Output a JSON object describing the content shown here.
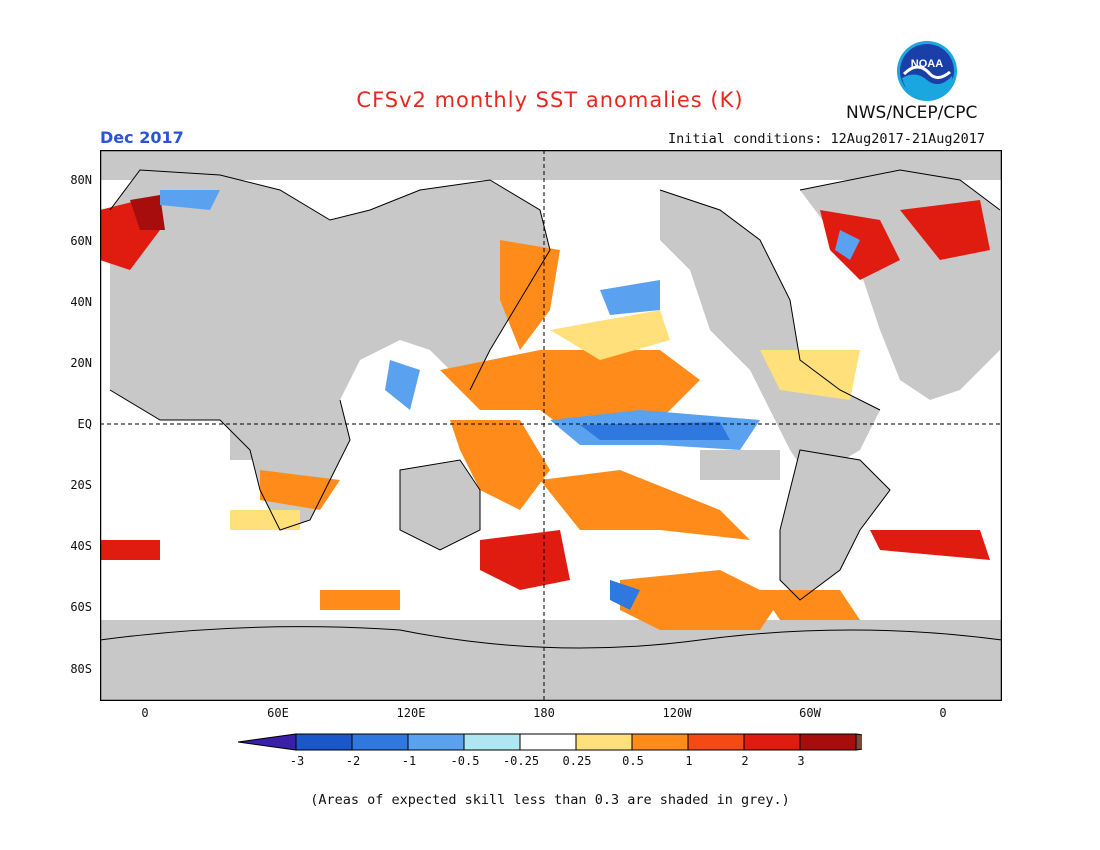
{
  "title": "CFSv2 monthly SST anomalies (K)",
  "agency": "NWS/NCEP/CPC",
  "logo_text": "NOAA",
  "period": "Dec 2017",
  "initial_conditions": "Initial conditions: 12Aug2017-21Aug2017",
  "lat_labels": [
    "80N",
    "60N",
    "40N",
    "20N",
    "EQ",
    "20S",
    "40S",
    "60S",
    "80S"
  ],
  "lon_labels": [
    "0",
    "60E",
    "120E",
    "180",
    "120W",
    "60W",
    "0"
  ],
  "colorbar": {
    "labels": [
      "-3",
      "-2",
      "-1",
      "-0.5",
      "-0.25",
      "0.25",
      "0.5",
      "1",
      "2",
      "3"
    ],
    "colors": [
      "#3a1fa8",
      "#1a57c8",
      "#2f78e0",
      "#5aa2ef",
      "#aee6f2",
      "#ffffff",
      "#ffe07a",
      "#ff8c1a",
      "#f54a14",
      "#e01b0f",
      "#a80d0d",
      "#7a4a3a"
    ]
  },
  "footnote": "(Areas of expected skill less than 0.3 are shaded in grey.)",
  "colors": {
    "land": "#c8c8c8",
    "grey_skill": "#c8c8c8",
    "title": "#e8271f",
    "period": "#2a54d6"
  }
}
